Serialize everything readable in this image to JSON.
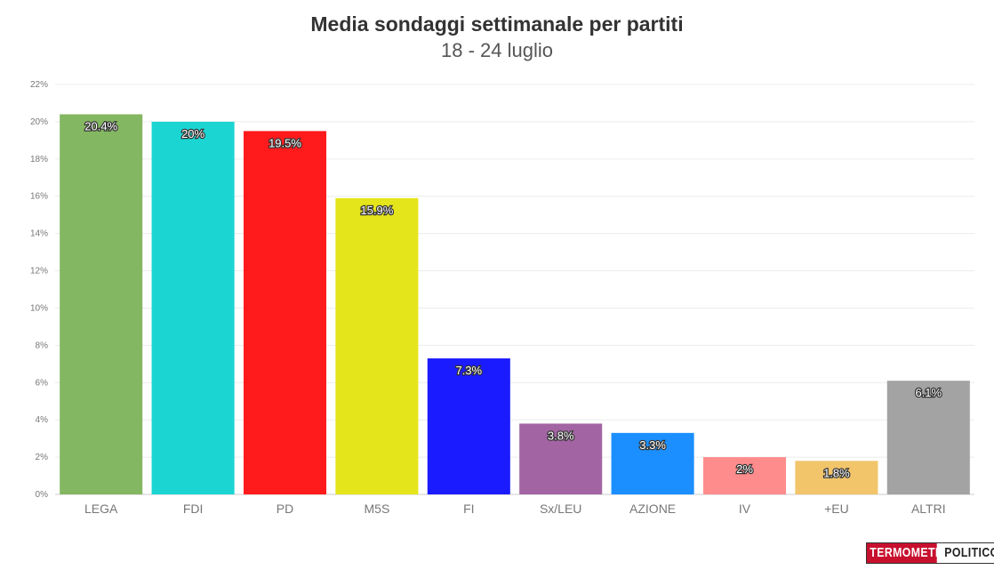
{
  "chart_data": {
    "type": "bar",
    "title": "Media sondaggi settimanale per partiti",
    "subtitle": "18 - 24 luglio",
    "categories": [
      "LEGA",
      "FDI",
      "PD",
      "M5S",
      "FI",
      "Sx/LEU",
      "AZIONE",
      "IV",
      "+EU",
      "ALTRI"
    ],
    "values": [
      20.4,
      20,
      19.5,
      15.9,
      7.3,
      3.8,
      3.3,
      2,
      1.8,
      6.1
    ],
    "value_labels": [
      "20.4%",
      "20%",
      "19.5%",
      "15.9%",
      "7.3%",
      "3.8%",
      "3.3%",
      "2%",
      "1.8%",
      "6.1%"
    ],
    "colors": [
      "#84b761",
      "#1bd5d3",
      "#ff1b1c",
      "#e5e51b",
      "#1b1bff",
      "#a364a3",
      "#1b8fff",
      "#ff8c8c",
      "#f2c56b",
      "#a3a3a3"
    ],
    "ylim": [
      0,
      22
    ],
    "yticks": [
      "0%",
      "2%",
      "4%",
      "6%",
      "8%",
      "10%",
      "12%",
      "14%",
      "16%",
      "18%",
      "20%",
      "22%"
    ],
    "ytick_values": [
      0,
      2,
      4,
      6,
      8,
      10,
      12,
      14,
      16,
      18,
      20,
      22
    ],
    "grid": true,
    "legend": "none"
  },
  "logo": {
    "left_text": "TERMOMETRO",
    "right_text": "POLITICO",
    "colors": {
      "left_bg": "#c8102e",
      "right_bg": "#ffffff"
    }
  }
}
